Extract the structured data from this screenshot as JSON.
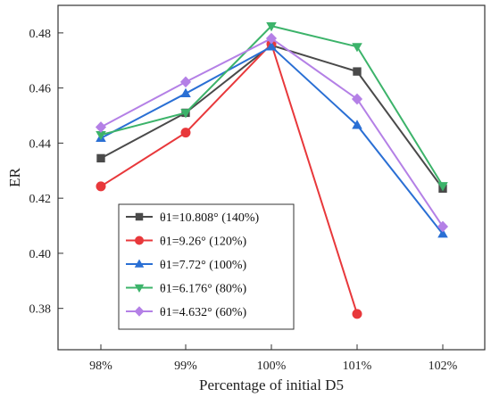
{
  "chart_data": {
    "type": "line",
    "title": "",
    "xlabel": "Percentage of initial D5",
    "ylabel": "ER",
    "categories": [
      "98%",
      "99%",
      "100%",
      "101%",
      "102%"
    ],
    "ylim": [
      0.365,
      0.49
    ],
    "yticks": [
      0.38,
      0.4,
      0.42,
      0.44,
      0.46,
      0.48
    ],
    "ytick_labels": [
      "0.38",
      "0.40",
      "0.42",
      "0.44",
      "0.46",
      "0.48"
    ],
    "grid": false,
    "legend_position": "lower-left",
    "series": [
      {
        "name": "θ1=10.808° (140%)",
        "color": "#4a4a4a",
        "marker": "square",
        "values": [
          0.4345,
          0.451,
          0.4755,
          0.466,
          0.4235
        ]
      },
      {
        "name": "θ1=9.26° (120%)",
        "color": "#e8383b",
        "marker": "circle",
        "values": [
          0.4243,
          0.4438,
          0.476,
          0.378,
          null
        ]
      },
      {
        "name": "θ1=7.72° (100%)",
        "color": "#2a6fd4",
        "marker": "triangle-up",
        "values": [
          0.4418,
          0.458,
          0.475,
          0.4465,
          0.407
        ]
      },
      {
        "name": "θ1=6.176° (80%)",
        "color": "#3cb36a",
        "marker": "triangle-down",
        "values": [
          0.443,
          0.451,
          0.4825,
          0.475,
          0.4245
        ]
      },
      {
        "name": "θ1=4.632° (60%)",
        "color": "#b480e6",
        "marker": "diamond",
        "values": [
          0.4458,
          0.4622,
          0.478,
          0.456,
          0.4097
        ]
      }
    ]
  }
}
